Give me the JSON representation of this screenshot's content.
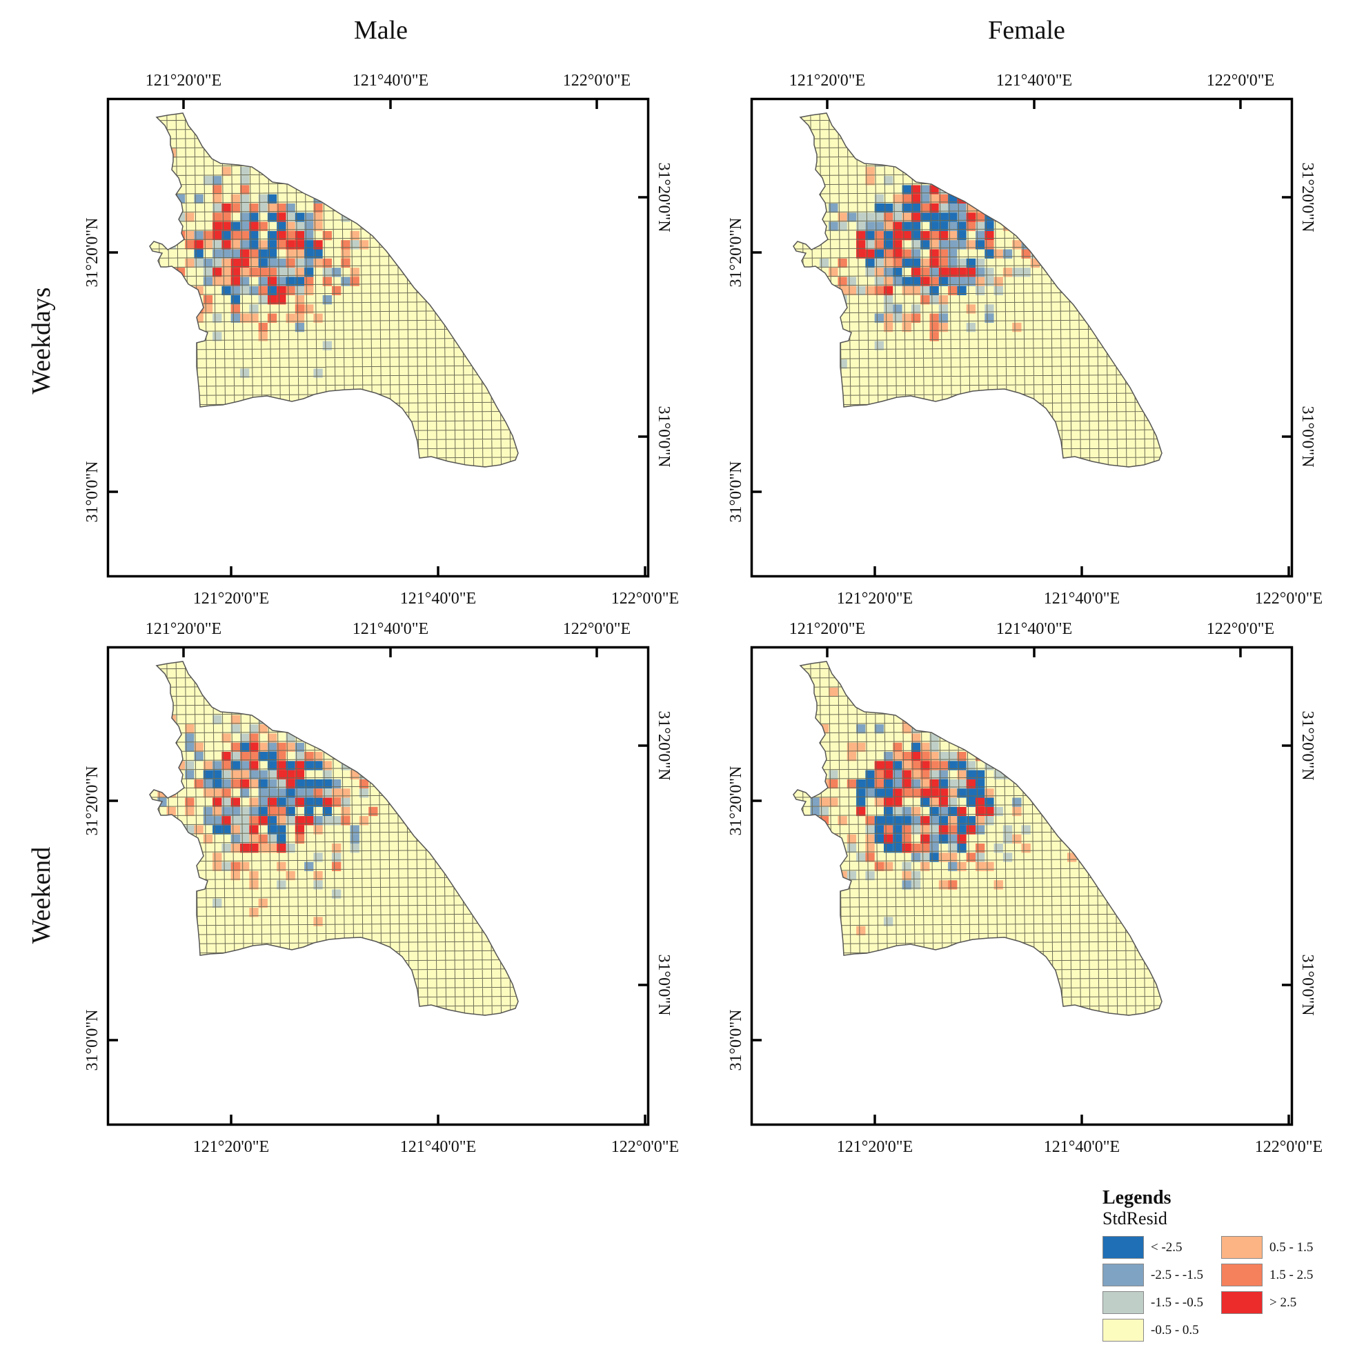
{
  "columns": [
    "Male",
    "Female"
  ],
  "rows": [
    "Weekdays",
    "Weekend"
  ],
  "axes": {
    "lon_labels": [
      "121°20'0\"E",
      "121°40'0\"E",
      "122°0'0\"E"
    ],
    "lat_labels": [
      "31°20'0\"N",
      "31°0'0\"N"
    ]
  },
  "legend": {
    "title": "Legends",
    "field": "StdResid",
    "classes": [
      {
        "label": "< -2.5",
        "color": "#1f6fb6"
      },
      {
        "label": "-2.5 - -1.5",
        "color": "#7fa3c2"
      },
      {
        "label": "-1.5 - -0.5",
        "color": "#bfcfc8"
      },
      {
        "label": "-0.5 - 0.5",
        "color": "#fdfcbf"
      },
      {
        "label": "0.5 - 1.5",
        "color": "#fdb484"
      },
      {
        "label": "1.5 - 2.5",
        "color": "#f5805c"
      },
      {
        "label": "> 2.5",
        "color": "#ec2b2b"
      }
    ]
  },
  "colors": {
    "outline": "#555555",
    "grid": "#6b6b55",
    "frame": "#000000"
  }
}
